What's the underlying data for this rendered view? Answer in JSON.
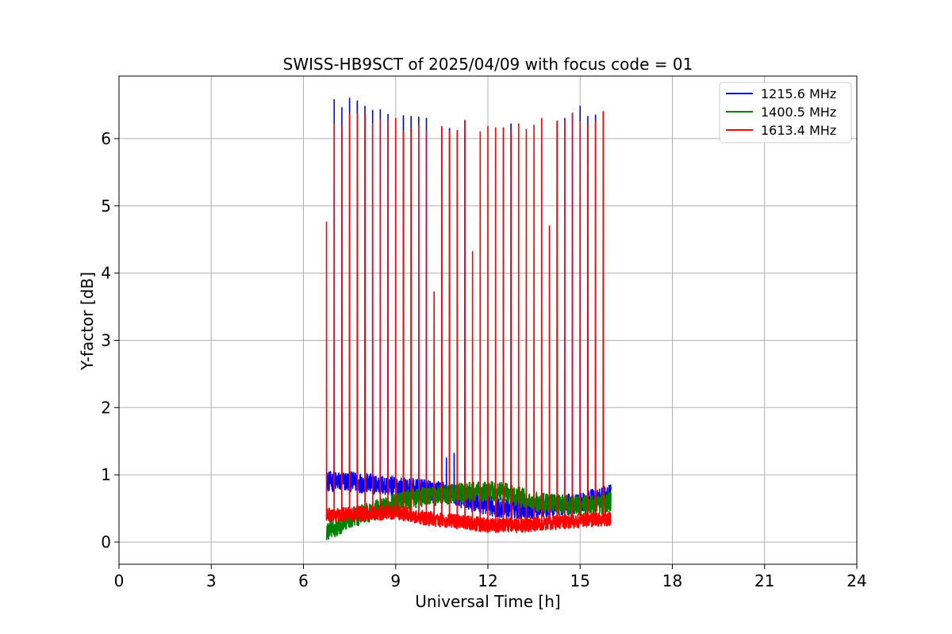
{
  "chart_data": {
    "type": "line",
    "title": "SWISS-HB9SCT of 2025/04/09 with focus code = 01",
    "xlabel": "Universal Time [h]",
    "ylabel": "Y-factor [dB]",
    "xlim": [
      0,
      24
    ],
    "ylim": [
      -0.33,
      6.93
    ],
    "x_ticks": [
      0,
      3,
      6,
      9,
      12,
      15,
      18,
      21,
      24
    ],
    "y_ticks": [
      0,
      1,
      2,
      3,
      4,
      5,
      6
    ],
    "grid": true,
    "legend": "top-right",
    "data_start_h": 6.75,
    "data_end_h": 16.0,
    "series": [
      {
        "name": "1215.6 MHz",
        "color": "#0000ff",
        "baseline": [
          [
            6.75,
            0.9
          ],
          [
            7.5,
            0.9
          ],
          [
            8.5,
            0.85
          ],
          [
            9.5,
            0.8
          ],
          [
            10.5,
            0.75
          ],
          [
            11.5,
            0.6
          ],
          [
            12.5,
            0.5
          ],
          [
            13.5,
            0.5
          ],
          [
            14.5,
            0.55
          ],
          [
            15.5,
            0.65
          ],
          [
            16.0,
            0.7
          ]
        ],
        "noise": 0.15,
        "spikes": [
          [
            7.0,
            6.58
          ],
          [
            7.25,
            6.46
          ],
          [
            7.5,
            6.6
          ],
          [
            7.75,
            6.56
          ],
          [
            8.0,
            6.48
          ],
          [
            8.25,
            6.42
          ],
          [
            8.5,
            6.43
          ],
          [
            8.75,
            6.36
          ],
          [
            9.25,
            6.34
          ],
          [
            9.5,
            6.33
          ],
          [
            9.75,
            6.32
          ],
          [
            10.0,
            6.3
          ],
          [
            10.5,
            6.16
          ],
          [
            10.75,
            6.15
          ],
          [
            11.25,
            6.27
          ],
          [
            12.75,
            6.22
          ],
          [
            14.25,
            6.25
          ],
          [
            14.5,
            6.3
          ],
          [
            14.75,
            6.37
          ],
          [
            15.0,
            6.48
          ],
          [
            15.25,
            6.33
          ],
          [
            15.5,
            6.35
          ],
          [
            15.75,
            6.4
          ]
        ],
        "bumps": [
          [
            10.65,
            1.25
          ],
          [
            10.9,
            1.32
          ]
        ]
      },
      {
        "name": "1400.5 MHz",
        "color": "#008000",
        "baseline": [
          [
            6.75,
            0.15
          ],
          [
            7.5,
            0.35
          ],
          [
            8.5,
            0.5
          ],
          [
            9.5,
            0.65
          ],
          [
            10.5,
            0.7
          ],
          [
            11.5,
            0.75
          ],
          [
            12.5,
            0.75
          ],
          [
            13.5,
            0.6
          ],
          [
            14.5,
            0.55
          ],
          [
            15.5,
            0.55
          ],
          [
            16.0,
            0.6
          ]
        ],
        "noise": 0.15,
        "spikes": [],
        "bumps": [
          [
            12.75,
            1.08
          ]
        ]
      },
      {
        "name": "1613.4 MHz",
        "color": "#ff0000",
        "baseline": [
          [
            6.75,
            0.4
          ],
          [
            8.0,
            0.42
          ],
          [
            9.0,
            0.45
          ],
          [
            10.0,
            0.35
          ],
          [
            11.0,
            0.3
          ],
          [
            12.0,
            0.25
          ],
          [
            13.0,
            0.25
          ],
          [
            14.0,
            0.28
          ],
          [
            15.0,
            0.32
          ],
          [
            16.0,
            0.35
          ]
        ],
        "noise": 0.11,
        "spikes": [
          [
            6.75,
            4.76
          ],
          [
            7.0,
            6.22
          ],
          [
            7.25,
            6.2
          ],
          [
            7.5,
            6.37
          ],
          [
            7.75,
            6.37
          ],
          [
            8.0,
            6.37
          ],
          [
            8.25,
            6.22
          ],
          [
            8.5,
            6.28
          ],
          [
            8.75,
            6.25
          ],
          [
            9.0,
            6.3
          ],
          [
            9.25,
            6.1
          ],
          [
            9.5,
            6.15
          ],
          [
            9.75,
            6.2
          ],
          [
            10.0,
            6.12
          ],
          [
            10.25,
            3.72
          ],
          [
            10.5,
            6.18
          ],
          [
            10.75,
            6.1
          ],
          [
            11.0,
            6.12
          ],
          [
            11.25,
            6.27
          ],
          [
            11.5,
            4.32
          ],
          [
            11.75,
            6.1
          ],
          [
            12.0,
            6.18
          ],
          [
            12.25,
            6.16
          ],
          [
            12.5,
            6.16
          ],
          [
            12.75,
            6.12
          ],
          [
            13.0,
            6.22
          ],
          [
            13.25,
            6.14
          ],
          [
            13.5,
            6.2
          ],
          [
            13.75,
            6.3
          ],
          [
            14.0,
            4.7
          ],
          [
            14.25,
            6.26
          ],
          [
            14.5,
            6.26
          ],
          [
            14.75,
            6.38
          ],
          [
            15.0,
            6.25
          ],
          [
            15.25,
            6.22
          ],
          [
            15.5,
            6.25
          ],
          [
            15.75,
            6.4
          ]
        ],
        "bumps": []
      }
    ]
  }
}
